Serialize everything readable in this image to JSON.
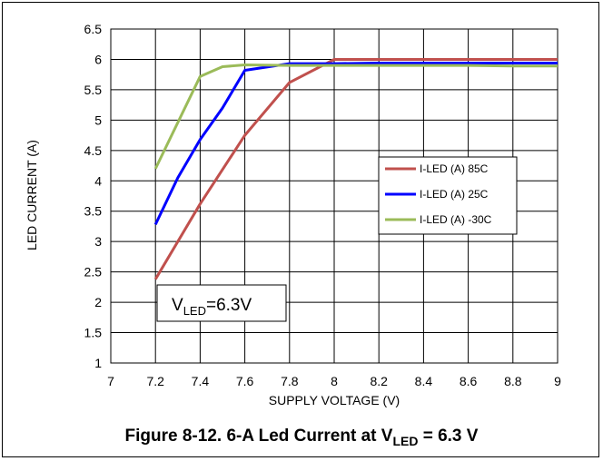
{
  "chart_data": {
    "type": "line",
    "xlabel": "SUPPLY VOLTAGE (V)",
    "ylabel": "LED CURRENT (A)",
    "xlim": [
      7,
      9
    ],
    "ylim": [
      1,
      6.5
    ],
    "x_ticks": [
      "7",
      "7.2",
      "7.4",
      "7.6",
      "7.8",
      "8",
      "8.2",
      "8.4",
      "8.6",
      "8.8",
      "9"
    ],
    "y_ticks": [
      "1",
      "1.5",
      "2",
      "2.5",
      "3",
      "3.5",
      "4",
      "4.5",
      "5",
      "5.5",
      "6",
      "6.5"
    ],
    "grid": true,
    "legend_position": "right",
    "series": [
      {
        "name": "I-LED (A) 85C",
        "color": "#c0504d",
        "x": [
          7.2,
          7.4,
          7.6,
          7.8,
          8.0,
          8.2,
          8.4,
          8.6,
          8.8,
          9.0
        ],
        "y": [
          2.38,
          3.62,
          4.75,
          5.62,
          6.0,
          6.0,
          6.0,
          6.0,
          6.0,
          6.0
        ]
      },
      {
        "name": "I-LED (A) 25C",
        "color": "#0000ff",
        "x": [
          7.2,
          7.3,
          7.4,
          7.5,
          7.6,
          7.8,
          8.0,
          8.2,
          8.4,
          8.6,
          8.8,
          9.0
        ],
        "y": [
          3.28,
          4.05,
          4.68,
          5.2,
          5.82,
          5.93,
          5.93,
          5.94,
          5.94,
          5.94,
          5.94,
          5.94
        ]
      },
      {
        "name": "I-LED (A) -30C",
        "color": "#9bbb59",
        "x": [
          7.2,
          7.4,
          7.5,
          7.6,
          7.8,
          8.0,
          8.2,
          8.4,
          8.6,
          8.8,
          9.0
        ],
        "y": [
          4.2,
          5.72,
          5.88,
          5.91,
          5.9,
          5.9,
          5.9,
          5.9,
          5.9,
          5.89,
          5.89
        ]
      }
    ],
    "annotation": {
      "main": "V",
      "sub": "LED",
      "rest": "=6.3V"
    }
  },
  "caption": {
    "prefix": "Figure 8-12. 6-A Led Current at V",
    "sub": "LED",
    "suffix": " = 6.3 V"
  }
}
